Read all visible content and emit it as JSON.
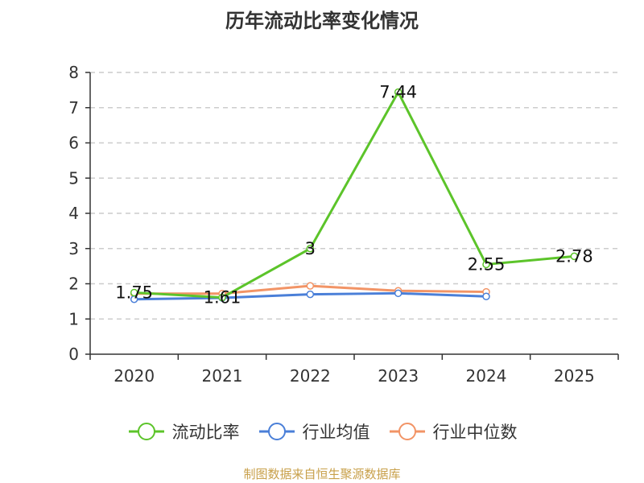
{
  "chart_data": {
    "type": "line",
    "title": "历年流动比率变化情况",
    "categories": [
      "2020",
      "2021",
      "2022",
      "2023",
      "2024",
      "2025"
    ],
    "ylim": [
      0,
      8
    ],
    "yticks": [
      0,
      1,
      2,
      3,
      4,
      5,
      6,
      7,
      8
    ],
    "grid": true,
    "legend_position": "bottom",
    "series": [
      {
        "name": "流动比率",
        "color": "#5cc42a",
        "values": [
          1.75,
          1.61,
          3,
          7.44,
          2.55,
          2.78
        ],
        "labels": [
          "1.75",
          "1.61",
          "3",
          "7.44",
          "2.55",
          "2.78"
        ]
      },
      {
        "name": "行业均值",
        "color": "#4a7fd8",
        "values": [
          1.56,
          1.6,
          1.7,
          1.73,
          1.64,
          null
        ]
      },
      {
        "name": "行业中位数",
        "color": "#f29466",
        "values": [
          1.72,
          1.72,
          1.94,
          1.8,
          1.77,
          null
        ]
      }
    ]
  },
  "footer": {
    "source": "制图数据来自恒生聚源数据库"
  }
}
